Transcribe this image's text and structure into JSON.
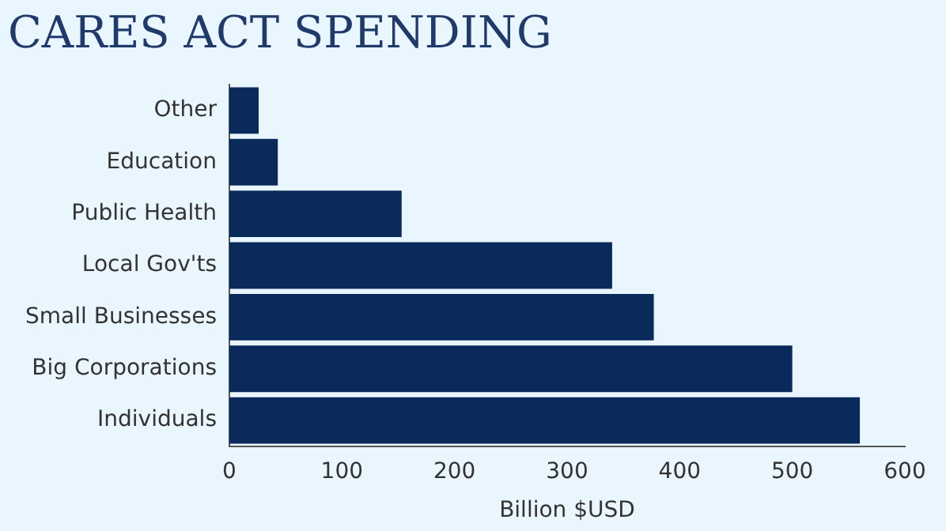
{
  "chart_data": {
    "type": "bar",
    "orientation": "horizontal",
    "title": "CARES ACT SPENDING",
    "xlabel": "Billion $USD",
    "categories": [
      "Other",
      "Education",
      "Public Health",
      "Local Gov'ts",
      "Small Businesses",
      "Big Corporations",
      "Individuals"
    ],
    "values": [
      26,
      43,
      153,
      340,
      377,
      500,
      560
    ],
    "color": "#0a2a5c",
    "xlim": [
      0,
      600
    ],
    "xticks": [
      0,
      100,
      200,
      300,
      400,
      500,
      600
    ],
    "grid": false,
    "legend": false
  }
}
